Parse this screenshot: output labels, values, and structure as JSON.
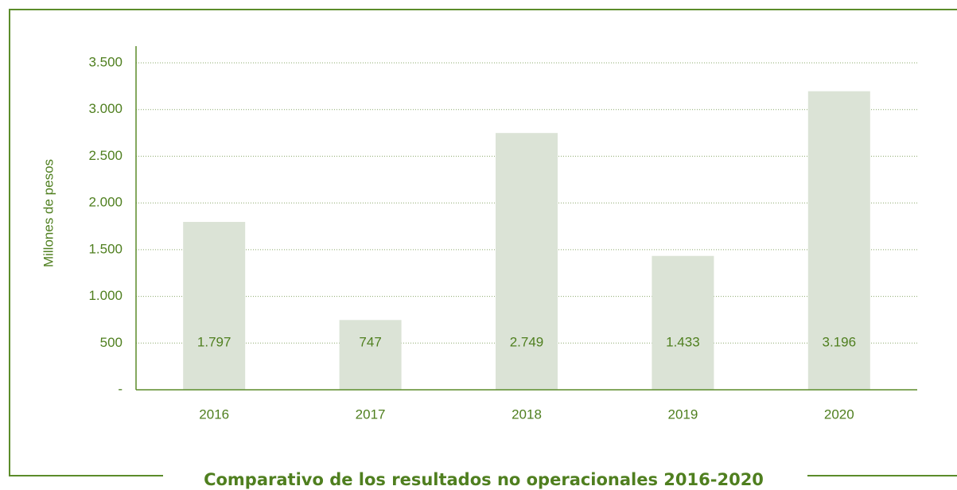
{
  "chart_data": {
    "type": "bar",
    "title": "Comparativo de los resultados no operacionales 2016-2020",
    "y_label": "Millones de pesos",
    "categories": [
      "2016",
      "2017",
      "2018",
      "2019",
      "2020"
    ],
    "values": [
      1797,
      747,
      2749,
      1433,
      3196
    ],
    "value_labels": [
      "1.797",
      "747",
      "2.749",
      "1.433",
      "3.196"
    ],
    "color": "#dbe3d6",
    "ylim": [
      0,
      3500
    ],
    "yticks": [
      {
        "value": 0,
        "label": "-"
      },
      500,
      {
        "value": 1000,
        "label": "1.000"
      },
      {
        "value": 1500,
        "label": "1.500"
      },
      {
        "value": 2000,
        "label": "2.000"
      },
      {
        "value": 2500,
        "label": "2.500"
      },
      {
        "value": 3000,
        "label": "3.000"
      },
      {
        "value": 3500,
        "label": "3.500"
      }
    ],
    "grid": true
  }
}
